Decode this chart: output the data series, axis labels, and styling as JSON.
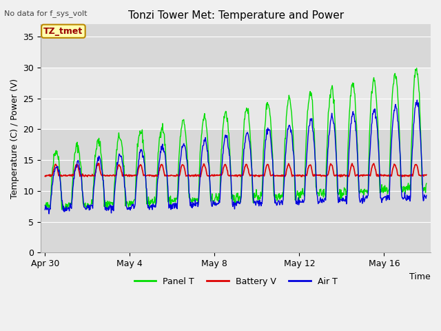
{
  "title": "Tonzi Tower Met: Temperature and Power",
  "xlabel": "Time",
  "ylabel": "Temperature (C) / Power (V)",
  "note": "No data for f_sys_volt",
  "legend_label": "TZ_tmet",
  "ylim": [
    0,
    37
  ],
  "yticks": [
    0,
    5,
    10,
    15,
    20,
    25,
    30,
    35
  ],
  "x_tick_labels": [
    "Apr 30",
    "May 4",
    "May 8",
    "May 12",
    "May 16"
  ],
  "x_tick_positions": [
    0,
    4,
    8,
    12,
    16
  ],
  "series_colors": {
    "panel_t": "#00dd00",
    "battery_v": "#dd0000",
    "air_t": "#0000dd"
  },
  "legend_items": [
    "Panel T",
    "Battery V",
    "Air T"
  ],
  "legend_colors": [
    "#00dd00",
    "#dd0000",
    "#0000dd"
  ],
  "bg_outer": "#e0e0e0",
  "bg_inner_dark": "#d8d8d8",
  "bg_inner_light": "#e8e8e8",
  "grid_color": "#ffffff",
  "n_days": 18
}
